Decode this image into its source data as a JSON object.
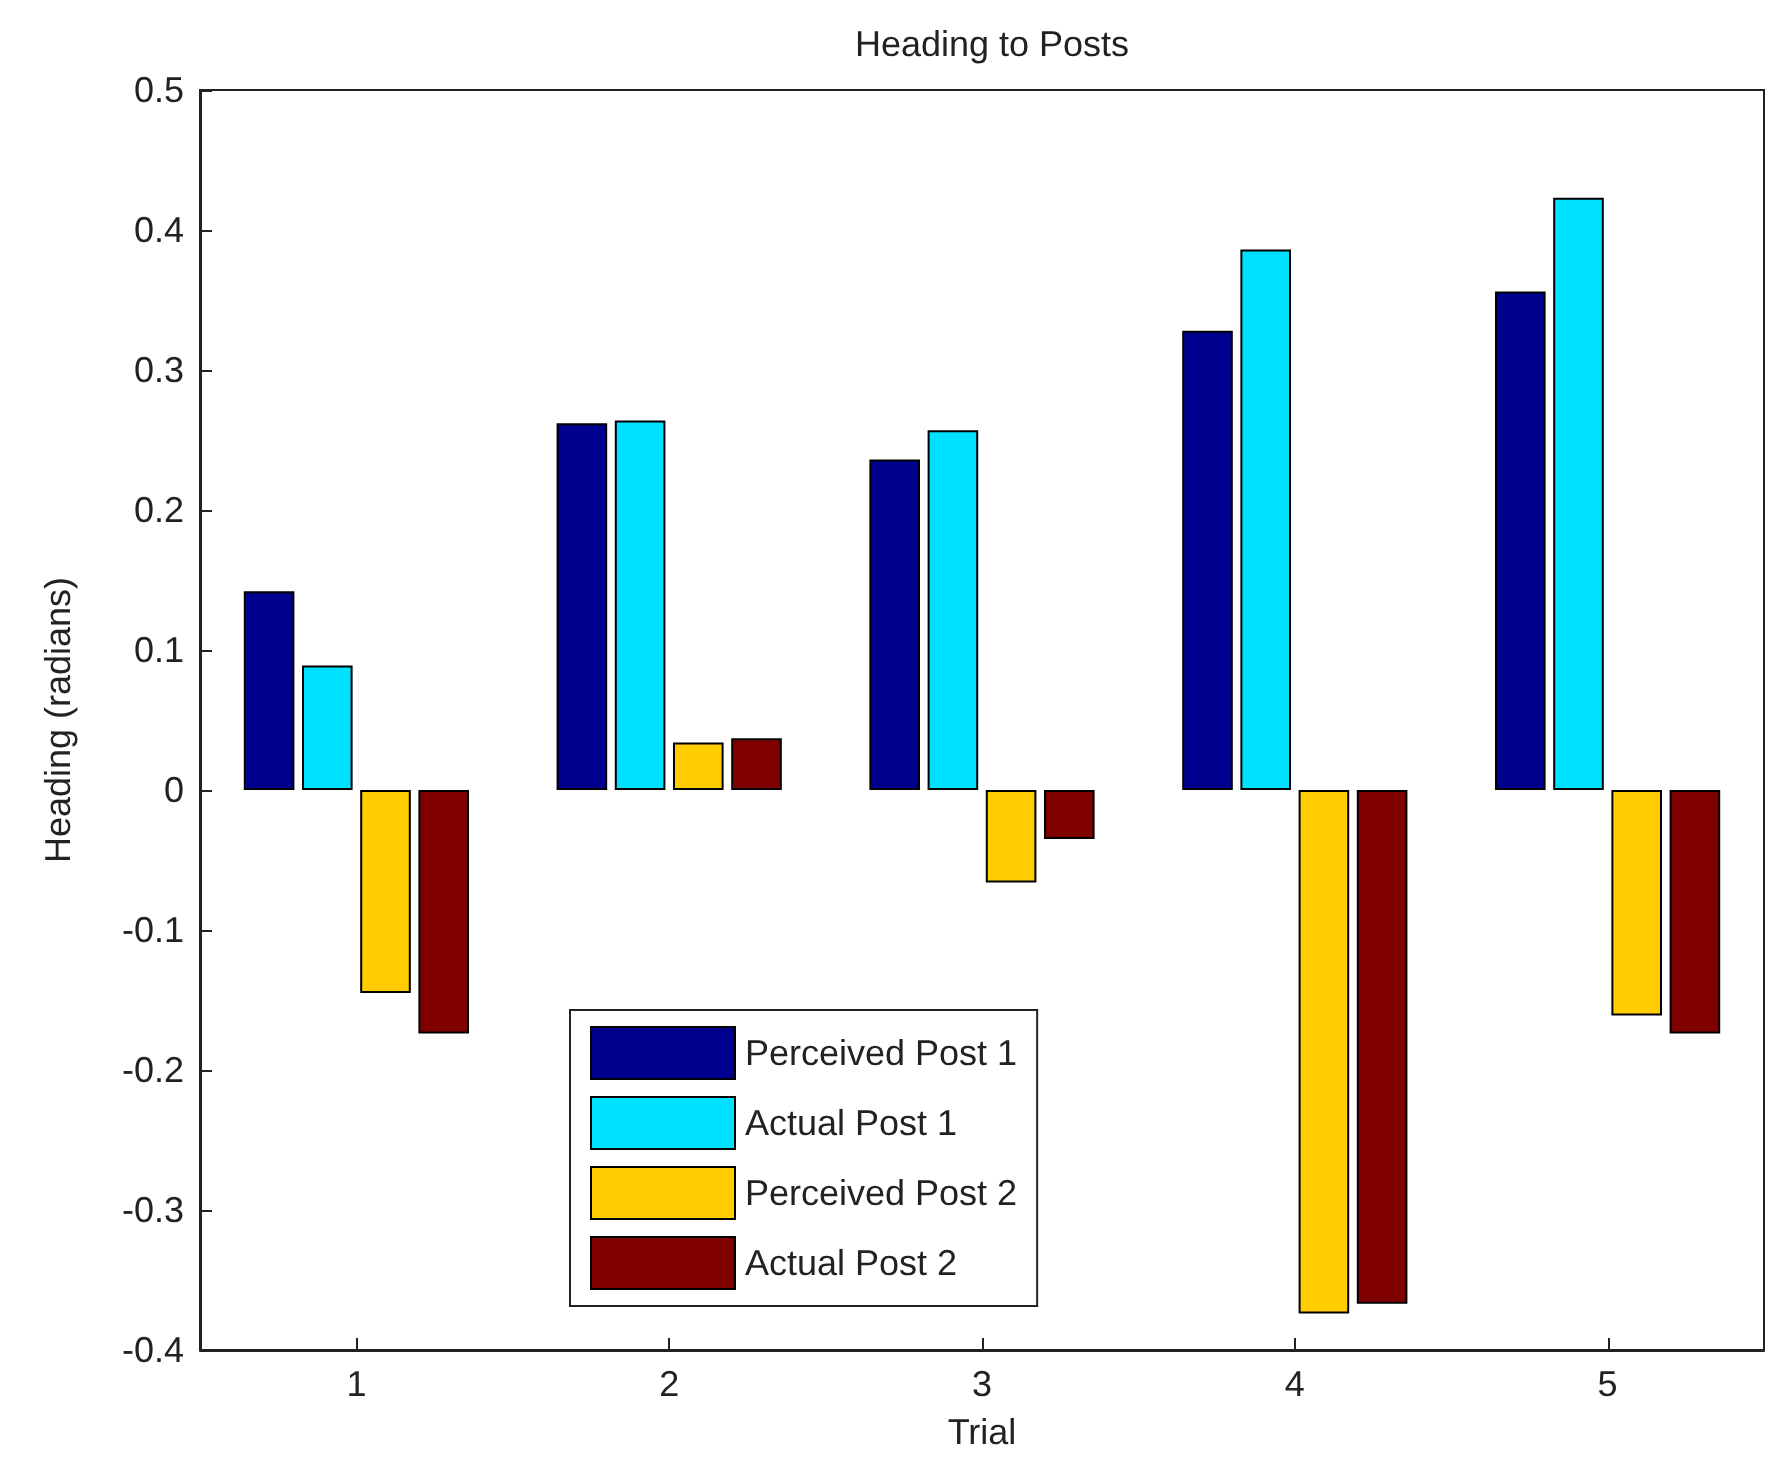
{
  "chart_data": {
    "type": "bar",
    "title": "Heading to Posts",
    "xlabel": "Trial",
    "ylabel": "Heading (radians)",
    "categories": [
      "1",
      "2",
      "3",
      "4",
      "5"
    ],
    "series": [
      {
        "name": "Perceived Post 1",
        "color": "#00008f",
        "values": [
          0.142,
          0.262,
          0.236,
          0.328,
          0.356
        ]
      },
      {
        "name": "Actual Post 1",
        "color": "#00e1ff",
        "values": [
          0.089,
          0.264,
          0.257,
          0.386,
          0.423
        ]
      },
      {
        "name": "Perceived Post 2",
        "color": "#ffcc00",
        "values": [
          -0.145,
          0.034,
          -0.066,
          -0.374,
          -0.161
        ]
      },
      {
        "name": "Actual Post 2",
        "color": "#800000",
        "values": [
          -0.174,
          0.037,
          -0.035,
          -0.367,
          -0.174
        ]
      }
    ],
    "ylim": [
      -0.4,
      0.5
    ],
    "yticks": [
      -0.4,
      -0.3,
      -0.2,
      -0.1,
      0,
      0.1,
      0.2,
      0.3,
      0.4,
      0.5
    ],
    "grid": false,
    "legend": "bottom left"
  }
}
